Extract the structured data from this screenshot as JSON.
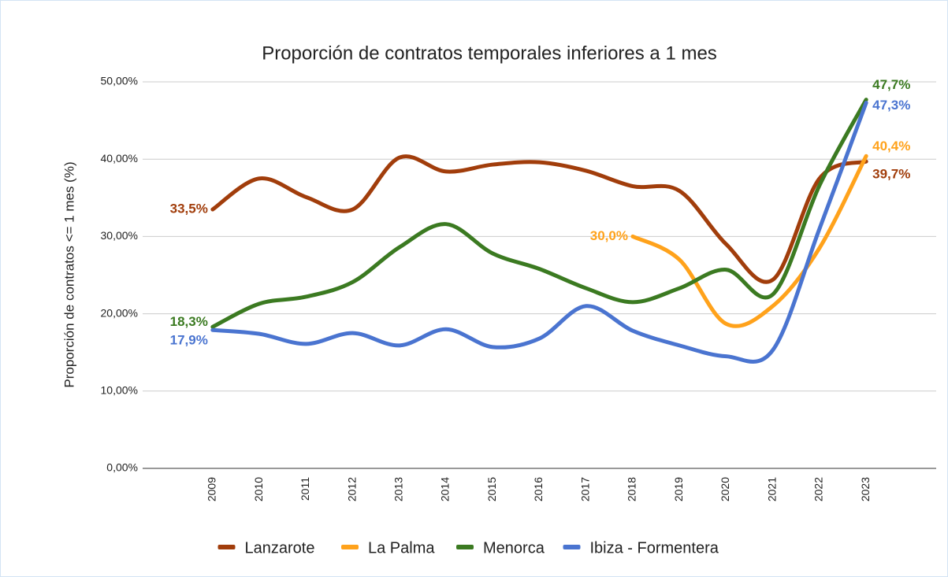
{
  "chart_data": {
    "type": "line",
    "title": "Proporción de contratos temporales inferiores a 1 mes",
    "y_label": "Proporción de contratos <= 1 mes (%)",
    "categories": [
      "2009",
      "2010",
      "2011",
      "2012",
      "2013",
      "2014",
      "2015",
      "2016",
      "2017",
      "2018",
      "2019",
      "2020",
      "2021",
      "2022",
      "2023"
    ],
    "series": [
      {
        "name": "Lanzarote",
        "color": "#a13d0b",
        "values": [
          33.5,
          37.5,
          35.1,
          33.5,
          40.2,
          38.4,
          39.3,
          39.6,
          38.5,
          36.5,
          35.9,
          29.0,
          24.4,
          37.5,
          39.7
        ],
        "value_labels": [
          "33,5%",
          null,
          null,
          null,
          null,
          null,
          null,
          null,
          null,
          null,
          null,
          null,
          null,
          null,
          "39,7%"
        ]
      },
      {
        "name": "La Palma",
        "color": "#ffa21b",
        "values": [
          null,
          null,
          null,
          null,
          null,
          null,
          null,
          null,
          null,
          30.0,
          27.0,
          18.7,
          21.0,
          28.5,
          40.4
        ],
        "value_labels": [
          null,
          null,
          null,
          null,
          null,
          null,
          null,
          null,
          null,
          "30,0%",
          null,
          null,
          null,
          null,
          "40,4%"
        ]
      },
      {
        "name": "Menorca",
        "color": "#3b7a21",
        "values": [
          18.3,
          21.3,
          22.2,
          24.1,
          28.6,
          31.6,
          27.8,
          25.8,
          23.3,
          21.5,
          23.3,
          25.7,
          22.5,
          36.6,
          47.7
        ],
        "value_labels": [
          "18,3%",
          null,
          null,
          null,
          null,
          null,
          null,
          null,
          null,
          null,
          null,
          null,
          null,
          null,
          "47,7%"
        ]
      },
      {
        "name": "Ibiza - Formentera",
        "color": "#4a74d0",
        "values": [
          17.9,
          17.4,
          16.1,
          17.5,
          15.9,
          18.0,
          15.7,
          16.8,
          21.0,
          17.8,
          15.9,
          14.5,
          15.3,
          31.0,
          47.3
        ],
        "value_labels": [
          "17,9%",
          null,
          null,
          null,
          null,
          null,
          null,
          null,
          null,
          null,
          null,
          null,
          null,
          null,
          "47,3%"
        ]
      }
    ],
    "ylim": [
      0,
      50
    ],
    "yticks": [
      {
        "value": 0,
        "label": "0,00%"
      },
      {
        "value": 10,
        "label": "10,00%"
      },
      {
        "value": 20,
        "label": "20,00%"
      },
      {
        "value": 30,
        "label": "30,00%"
      },
      {
        "value": 40,
        "label": "40,00%"
      },
      {
        "value": 50,
        "label": "50,00%"
      }
    ],
    "grid": true,
    "legend": "bottom"
  }
}
